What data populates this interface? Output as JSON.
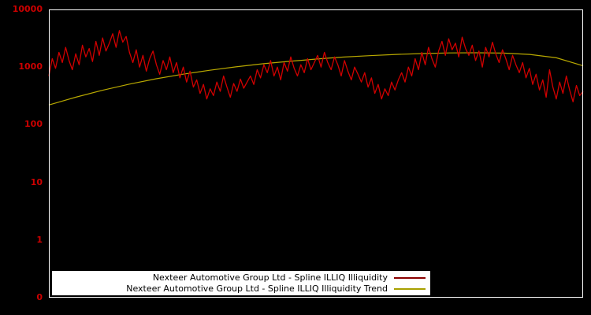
{
  "chart": {
    "background": "#000000",
    "plot_border_color": "#ffffff",
    "axis": {
      "tick_color": "#cc0000",
      "scale": "log",
      "tick_labels": [
        "10000",
        "1000",
        "100",
        "10",
        "1",
        "0"
      ]
    },
    "legend": {
      "background": "#ffffff",
      "text_color": "#000000",
      "items": [
        {
          "label": "Nexteer Automotive Group Ltd - Spline ILLIQ Illiquidity",
          "color": "#8b0000"
        },
        {
          "label": "Nexteer Automotive Group Ltd - Spline ILLIQ Illiquidity Trend",
          "color": "#a8a000"
        }
      ]
    }
  },
  "chart_data": {
    "type": "line",
    "title": "",
    "xlabel": "",
    "ylabel": "",
    "yscale": "log",
    "ylim": [
      0.1,
      10000
    ],
    "ytick_labels": [
      "10000",
      "1000",
      "100",
      "10",
      "1",
      "0"
    ],
    "legend_position": "bottom-center",
    "grid": false,
    "series": [
      {
        "name": "Nexteer Automotive Group Ltd - Spline ILLIQ Illiquidity",
        "color": "#d10000",
        "values": [
          700,
          1400,
          950,
          1800,
          1200,
          2200,
          1300,
          900,
          1700,
          1100,
          2400,
          1500,
          2100,
          1250,
          2800,
          1600,
          3200,
          1900,
          2600,
          3800,
          2200,
          4300,
          2700,
          3400,
          1800,
          1200,
          2000,
          1000,
          1600,
          850,
          1400,
          1900,
          1100,
          750,
          1300,
          900,
          1500,
          800,
          1200,
          650,
          1000,
          550,
          850,
          450,
          600,
          350,
          500,
          280,
          420,
          320,
          550,
          380,
          700,
          450,
          300,
          520,
          380,
          620,
          430,
          550,
          700,
          500,
          900,
          650,
          1100,
          800,
          1300,
          700,
          1000,
          600,
          1200,
          850,
          1500,
          950,
          700,
          1100,
          800,
          1400,
          900,
          1200,
          1600,
          1000,
          1800,
          1200,
          900,
          1500,
          1100,
          700,
          1300,
          850,
          600,
          1000,
          750,
          550,
          800,
          450,
          650,
          350,
          500,
          280,
          420,
          320,
          550,
          400,
          600,
          800,
          550,
          1000,
          700,
          1400,
          900,
          1800,
          1100,
          2200,
          1400,
          1000,
          1900,
          2800,
          1600,
          3100,
          2000,
          2600,
          1500,
          3300,
          2100,
          1600,
          2400,
          1300,
          1900,
          1000,
          2200,
          1500,
          2700,
          1700,
          1200,
          2000,
          1400,
          900,
          1600,
          1100,
          800,
          1200,
          650,
          950,
          500,
          750,
          400,
          600,
          300,
          900,
          450,
          280,
          550,
          350,
          700,
          400,
          250,
          480,
          320,
          380
        ]
      },
      {
        "name": "Nexteer Automotive Group Ltd - Spline ILLIQ Illiquidity Trend",
        "color": "#b8a800",
        "values": [
          220,
          300,
          395,
          505,
          625,
          750,
          880,
          1010,
          1140,
          1260,
          1380,
          1490,
          1580,
          1660,
          1720,
          1760,
          1775,
          1750,
          1660,
          1450,
          1050
        ]
      }
    ]
  }
}
